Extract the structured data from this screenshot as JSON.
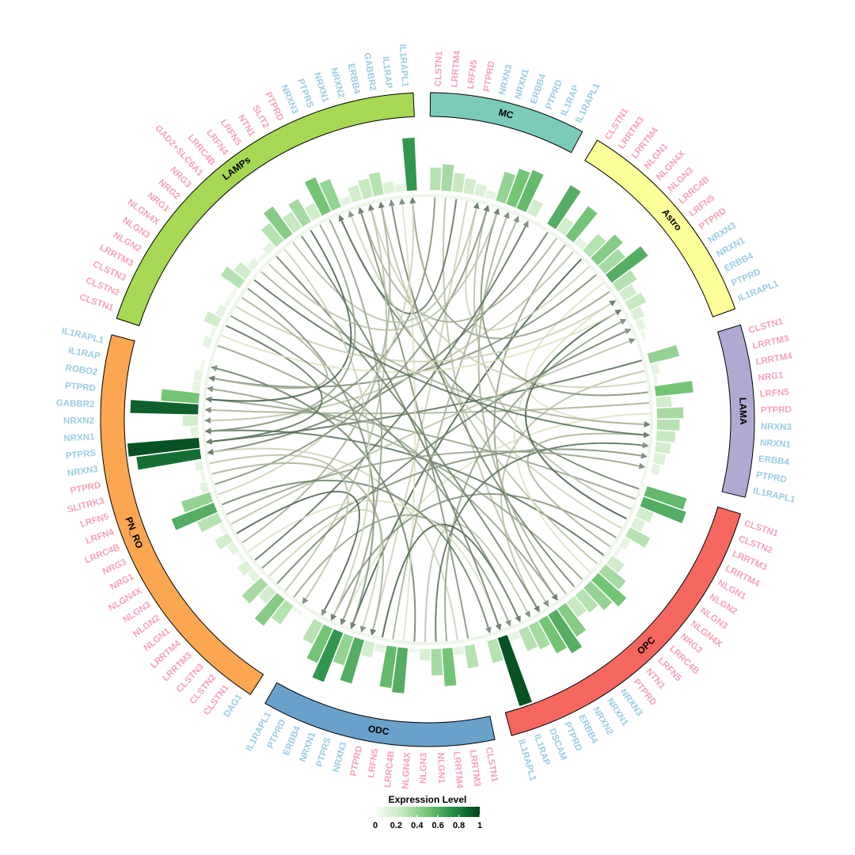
{
  "chart_data": {
    "type": "chord",
    "role_colors": {
      "ligand": "#f4a3b6",
      "receptor": "#9ccbe0"
    },
    "level_colors": [
      "#f7fcf5",
      "#c7e9c0",
      "#74c476",
      "#238b45",
      "#00441b"
    ],
    "link_colors": [
      "#f3f1d3",
      "#2f4d38"
    ],
    "legend": {
      "title": "Expression Level",
      "ticks": [
        0,
        0.2,
        0.4,
        0.6,
        0.8,
        1
      ]
    },
    "sectors": [
      {
        "name": "MC",
        "color": "#7ccbba",
        "genes": [
          [
            "CLSTN1",
            "ligand",
            0.3
          ],
          [
            "LRRTM4",
            "ligand",
            0.35
          ],
          [
            "LRFN5",
            "ligand",
            0.25
          ],
          [
            "PTPRD",
            "ligand",
            0.2
          ],
          [
            "NRXN3",
            "receptor",
            0.15
          ],
          [
            "NRXN1",
            "receptor",
            0.1
          ],
          [
            "ERBB4",
            "receptor",
            0.4
          ],
          [
            "PTPRD",
            "receptor",
            0.5
          ],
          [
            "IL1RAP",
            "receptor",
            0.55
          ],
          [
            "IL1RAPL1",
            "receptor",
            0.2
          ]
        ]
      },
      {
        "name": "Astro",
        "color": "#ffff99",
        "genes": [
          [
            "CLSTN1",
            "ligand",
            0.6
          ],
          [
            "LRRTM3",
            "ligand",
            0.2
          ],
          [
            "LRRTM4",
            "ligand",
            0.5
          ],
          [
            "NLGN1",
            "ligand",
            0.1
          ],
          [
            "NLGN4X",
            "ligand",
            0.3
          ],
          [
            "NLGN3",
            "ligand",
            0.45
          ],
          [
            "LRRC4B",
            "ligand",
            0.35
          ],
          [
            "LRFN5",
            "ligand",
            0.6
          ],
          [
            "PTPRD",
            "ligand",
            0.3
          ],
          [
            "NRXN3",
            "receptor",
            0.2
          ],
          [
            "NRXN1",
            "receptor",
            0.25
          ],
          [
            "ERBB4",
            "receptor",
            0.15
          ],
          [
            "PTPRD",
            "receptor",
            0.1
          ],
          [
            "IL1RAPL1",
            "receptor",
            0.05
          ]
        ]
      },
      {
        "name": "LAMA",
        "color": "#b0a9d1",
        "genes": [
          [
            "CLSTN1",
            "ligand",
            0.4
          ],
          [
            "LRRTM3",
            "ligand",
            0.1
          ],
          [
            "LRRTM4",
            "ligand",
            0.05
          ],
          [
            "NRG1",
            "ligand",
            0.5
          ],
          [
            "LRFN5",
            "ligand",
            0.2
          ],
          [
            "PTPRD",
            "ligand",
            0.35
          ],
          [
            "NRXN3",
            "receptor",
            0.3
          ],
          [
            "NRXN1",
            "receptor",
            0.25
          ],
          [
            "ERBB4",
            "receptor",
            0.2
          ],
          [
            "PTPRD",
            "receptor",
            0.15
          ],
          [
            "IL1RAPL1",
            "receptor",
            0.1
          ]
        ]
      },
      {
        "name": "OPC",
        "color": "#f5675f",
        "genes": [
          [
            "CLSTN1",
            "ligand",
            0.55
          ],
          [
            "CLSTN2",
            "ligand",
            0.6
          ],
          [
            "LRRTM3",
            "ligand",
            0.2
          ],
          [
            "LRRTM4",
            "ligand",
            0.15
          ],
          [
            "NLGN1",
            "ligand",
            0.3
          ],
          [
            "NLGN2",
            "ligand",
            0.1
          ],
          [
            "NLGN3",
            "ligand",
            0.05
          ],
          [
            "NLGN4X",
            "ligand",
            0.2
          ],
          [
            "NRG3",
            "ligand",
            0.35
          ],
          [
            "LRRC4B",
            "ligand",
            0.5
          ],
          [
            "LRFN5",
            "ligand",
            0.4
          ],
          [
            "NTN1",
            "ligand",
            0.3
          ],
          [
            "PTPRD",
            "ligand",
            0.25
          ],
          [
            "NRXN3",
            "receptor",
            0.45
          ],
          [
            "NRXN1",
            "receptor",
            0.6
          ],
          [
            "NRXN2",
            "receptor",
            0.5
          ],
          [
            "ERBB4",
            "receptor",
            0.35
          ],
          [
            "PTPRD",
            "receptor",
            0.3
          ],
          [
            "DSCAM",
            "receptor",
            0.1
          ],
          [
            "IL1RAP",
            "receptor",
            0.95
          ],
          [
            "IL1RAPL1",
            "receptor",
            0.3
          ]
        ]
      },
      {
        "name": "ODC",
        "color": "#6aa1cb",
        "genes": [
          [
            "CLSTN1",
            "ligand",
            0.3
          ],
          [
            "LRRTM3",
            "ligand",
            0.1
          ],
          [
            "LRRTM4",
            "ligand",
            0.5
          ],
          [
            "NLGN1",
            "ligand",
            0.35
          ],
          [
            "NLGN3",
            "ligand",
            0.15
          ],
          [
            "NLGN4X",
            "ligand",
            0.05
          ],
          [
            "LRRC4B",
            "ligand",
            0.6
          ],
          [
            "LRFN5",
            "ligand",
            0.55
          ],
          [
            "PTPRD",
            "ligand",
            0.1
          ],
          [
            "NRXN3",
            "receptor",
            0.2
          ],
          [
            "PTPRS",
            "receptor",
            0.6
          ],
          [
            "NRXN1",
            "receptor",
            0.4
          ],
          [
            "ERBB4",
            "receptor",
            0.7
          ],
          [
            "PTPRD",
            "receptor",
            0.5
          ],
          [
            "IL1RAPL1",
            "receptor",
            0.3
          ]
        ]
      },
      {
        "name": "PN_RO",
        "color": "#fba651",
        "genes": [
          [
            "DAG1",
            "receptor",
            0.05
          ],
          [
            "CLSTN1",
            "ligand",
            0.3
          ],
          [
            "CLSTN2",
            "ligand",
            0.45
          ],
          [
            "CLSTN3",
            "ligand",
            0.2
          ],
          [
            "LRRTM3",
            "ligand",
            0.35
          ],
          [
            "LRRTM4",
            "ligand",
            0.1
          ],
          [
            "NLGN1",
            "ligand",
            0.15
          ],
          [
            "NLGN2",
            "ligand",
            0.05
          ],
          [
            "NLGN3",
            "ligand",
            0.1
          ],
          [
            "NLGN4X",
            "ligand",
            0.2
          ],
          [
            "NRG1",
            "ligand",
            0.05
          ],
          [
            "NRG3",
            "ligand",
            0.3
          ],
          [
            "LRRC4B",
            "ligand",
            0.6
          ],
          [
            "LRFN4",
            "ligand",
            0.4
          ],
          [
            "LRFN5",
            "ligand",
            0.1
          ],
          [
            "SLITRK3",
            "ligand",
            0.05
          ],
          [
            "PTPRD",
            "ligand",
            0.1
          ],
          [
            "NRXN3",
            "receptor",
            0.85
          ],
          [
            "PTPRS",
            "receptor",
            0.95
          ],
          [
            "NRXN1",
            "receptor",
            0.1
          ],
          [
            "NRXN2",
            "receptor",
            0.2
          ],
          [
            "GABBR2",
            "receptor",
            0.9
          ],
          [
            "PTPRD",
            "receptor",
            0.5
          ],
          [
            "ROBO2",
            "receptor",
            0.1
          ],
          [
            "IL1RAP",
            "receptor",
            0.1
          ],
          [
            "IL1RAPL1",
            "receptor",
            0.05
          ]
        ]
      },
      {
        "name": "LAMPs",
        "color": "#a6d854",
        "genes": [
          [
            "CLSTN1",
            "ligand",
            0.1
          ],
          [
            "CLSTN2",
            "ligand",
            0.05
          ],
          [
            "CLSTN3",
            "ligand",
            0.2
          ],
          [
            "LRRTM3",
            "ligand",
            0.1
          ],
          [
            "NLGN2",
            "ligand",
            0.05
          ],
          [
            "NLGN3",
            "ligand",
            0.05
          ],
          [
            "NLGN4X",
            "ligand",
            0.3
          ],
          [
            "NRG1",
            "ligand",
            0.2
          ],
          [
            "NRG2",
            "ligand",
            0.1
          ],
          [
            "NRG3",
            "ligand",
            0.05
          ],
          [
            "GAD2+SLC6A1",
            "ligand",
            0.1
          ],
          [
            "LRRC4B",
            "ligand",
            0.3
          ],
          [
            "LRFN4",
            "ligand",
            0.45
          ],
          [
            "LRFN5",
            "ligand",
            0.25
          ],
          [
            "NTN1",
            "ligand",
            0.35
          ],
          [
            "SLIT2",
            "ligand",
            0.2
          ],
          [
            "PTPRD",
            "ligand",
            0.5
          ],
          [
            "NRXN3",
            "receptor",
            0.4
          ],
          [
            "PTPRS",
            "receptor",
            0.1
          ],
          [
            "NRXN1",
            "receptor",
            0.2
          ],
          [
            "NRXN2",
            "receptor",
            0.25
          ],
          [
            "ERBB4",
            "receptor",
            0.3
          ],
          [
            "GABBR2",
            "receptor",
            0.15
          ],
          [
            "IL1RAP",
            "receptor",
            0.1
          ],
          [
            "IL1RAPL1",
            "receptor",
            0.7
          ]
        ]
      }
    ],
    "links": [
      [
        0,
        0,
        5,
        19,
        0.6
      ],
      [
        0,
        1,
        3,
        14,
        0.3
      ],
      [
        0,
        2,
        6,
        17,
        0.8
      ],
      [
        0,
        3,
        4,
        9,
        0.2
      ],
      [
        1,
        0,
        5,
        17,
        0.7
      ],
      [
        1,
        1,
        6,
        19,
        0.4
      ],
      [
        1,
        2,
        3,
        13,
        0.5
      ],
      [
        1,
        3,
        5,
        20,
        0.3
      ],
      [
        1,
        4,
        4,
        11,
        0.9
      ],
      [
        1,
        5,
        0,
        4,
        0.2
      ],
      [
        1,
        6,
        5,
        24,
        0.6
      ],
      [
        1,
        7,
        2,
        6,
        0.1
      ],
      [
        1,
        8,
        6,
        24,
        0.5
      ],
      [
        2,
        0,
        5,
        18,
        0.8
      ],
      [
        2,
        1,
        3,
        15,
        0.3
      ],
      [
        2,
        2,
        6,
        20,
        0.2
      ],
      [
        2,
        3,
        0,
        6,
        0.6
      ],
      [
        2,
        4,
        5,
        21,
        0.4
      ],
      [
        2,
        5,
        4,
        12,
        0.1
      ],
      [
        3,
        0,
        6,
        17,
        0.7
      ],
      [
        3,
        1,
        5,
        22,
        0.5
      ],
      [
        3,
        2,
        0,
        5,
        0.3
      ],
      [
        3,
        3,
        1,
        10,
        0.9
      ],
      [
        3,
        4,
        6,
        18,
        0.2
      ],
      [
        3,
        5,
        4,
        13,
        0.6
      ],
      [
        3,
        6,
        2,
        7,
        0.4
      ],
      [
        3,
        7,
        5,
        19,
        0.8
      ],
      [
        3,
        8,
        6,
        21,
        0.3
      ],
      [
        3,
        9,
        1,
        9,
        0.1
      ],
      [
        3,
        10,
        5,
        23,
        0.5
      ],
      [
        3,
        11,
        6,
        22,
        0.7
      ],
      [
        3,
        12,
        0,
        7,
        0.4
      ],
      [
        4,
        0,
        6,
        19,
        0.6
      ],
      [
        4,
        1,
        5,
        17,
        0.2
      ],
      [
        4,
        2,
        1,
        11,
        0.5
      ],
      [
        4,
        3,
        2,
        8,
        0.8
      ],
      [
        4,
        4,
        3,
        16,
        0.3
      ],
      [
        4,
        5,
        5,
        25,
        0.7
      ],
      [
        4,
        6,
        6,
        23,
        0.1
      ],
      [
        4,
        7,
        0,
        8,
        0.4
      ],
      [
        4,
        8,
        3,
        17,
        0.9
      ],
      [
        5,
        1,
        3,
        18,
        0.5
      ],
      [
        5,
        2,
        6,
        20,
        0.3
      ],
      [
        5,
        3,
        1,
        12,
        0.7
      ],
      [
        5,
        4,
        4,
        10,
        0.2
      ],
      [
        5,
        5,
        2,
        9,
        0.6
      ],
      [
        5,
        6,
        0,
        9,
        0.8
      ],
      [
        5,
        7,
        3,
        19,
        0.1
      ],
      [
        5,
        8,
        6,
        21,
        0.4
      ],
      [
        5,
        9,
        4,
        14,
        0.9
      ],
      [
        5,
        10,
        1,
        13,
        0.3
      ],
      [
        5,
        11,
        2,
        10,
        0.5
      ],
      [
        5,
        12,
        3,
        20,
        0.7
      ],
      [
        5,
        13,
        6,
        24,
        0.2
      ],
      [
        5,
        14,
        0,
        5,
        0.6
      ],
      [
        5,
        15,
        4,
        9,
        0.4
      ],
      [
        5,
        16,
        5,
        0,
        0.3
      ],
      [
        6,
        0,
        3,
        13,
        0.5
      ],
      [
        6,
        2,
        5,
        18,
        0.8
      ],
      [
        6,
        4,
        1,
        9,
        0.2
      ],
      [
        6,
        6,
        4,
        11,
        0.6
      ],
      [
        6,
        8,
        2,
        6,
        0.4
      ],
      [
        6,
        10,
        3,
        15,
        0.7
      ],
      [
        6,
        12,
        0,
        4,
        0.3
      ],
      [
        6,
        14,
        5,
        22,
        0.9
      ],
      [
        6,
        16,
        4,
        12,
        0.5
      ],
      [
        6,
        1,
        1,
        10,
        0.1
      ],
      [
        6,
        3,
        3,
        17,
        0.6
      ],
      [
        6,
        5,
        5,
        24,
        0.4
      ],
      [
        6,
        7,
        2,
        7,
        0.8
      ],
      [
        6,
        9,
        0,
        6,
        0.3
      ],
      [
        6,
        11,
        4,
        13,
        0.2
      ],
      [
        6,
        13,
        3,
        19,
        0.7
      ],
      [
        6,
        15,
        5,
        19,
        0.5
      ]
    ]
  }
}
